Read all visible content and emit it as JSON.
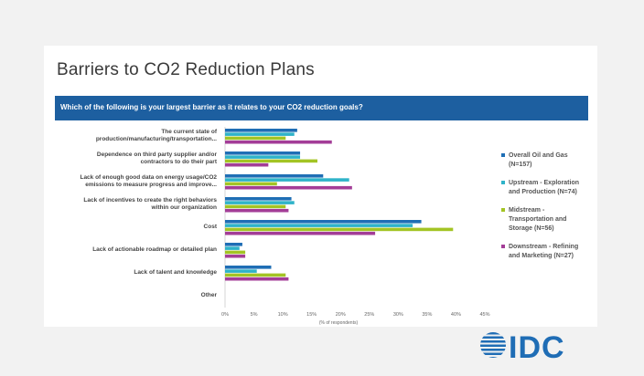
{
  "title": "Barriers to CO2 Reduction Plans",
  "question": "Which of the following is your largest barrier as it relates to your CO2 reduction goals?",
  "brand": "IDC",
  "chart_data": {
    "type": "bar",
    "orientation": "horizontal",
    "categories": [
      [
        "The current state of",
        "production/manufacturing/transportation..."
      ],
      [
        "Dependence on third party supplier and/or",
        "contractors to do their part"
      ],
      [
        "Lack of enough good data on energy usage/CO2",
        "emissions to measure progress and improve..."
      ],
      [
        "Lack of incentives to create the right behaviors",
        "within our organization"
      ],
      [
        "Cost"
      ],
      [
        "Lack of actionable roadmap or detailed plan"
      ],
      [
        "Lack of talent and knowledge"
      ],
      [
        "Other"
      ]
    ],
    "series": [
      {
        "name": "Overall Oil and Gas (N=157)",
        "color": "#1f6eb5",
        "values": [
          12.5,
          13,
          17,
          11.5,
          34,
          3,
          8,
          0
        ]
      },
      {
        "name": "Upstream - Exploration and Production (N=74)",
        "color": "#2fb3c9",
        "values": [
          12,
          13,
          21.5,
          12,
          32.5,
          2.5,
          5.5,
          0
        ]
      },
      {
        "name": "Midstream - Transportation and Storage (N=56)",
        "color": "#a3c424",
        "values": [
          10.5,
          16,
          9,
          10.5,
          39.5,
          3.5,
          10.5,
          0
        ]
      },
      {
        "name": "Downstream - Refining and Marketing (N=27)",
        "color": "#a33d97",
        "values": [
          18.5,
          7.5,
          22,
          11,
          26,
          3.5,
          11,
          0
        ]
      }
    ],
    "xticks": [
      "0%",
      "5%",
      "10%",
      "15%",
      "20%",
      "25%",
      "30%",
      "35%",
      "40%",
      "45%"
    ],
    "xlim": [
      0,
      45
    ],
    "xlabel": "(% of respondents)",
    "legend_position": "right"
  }
}
